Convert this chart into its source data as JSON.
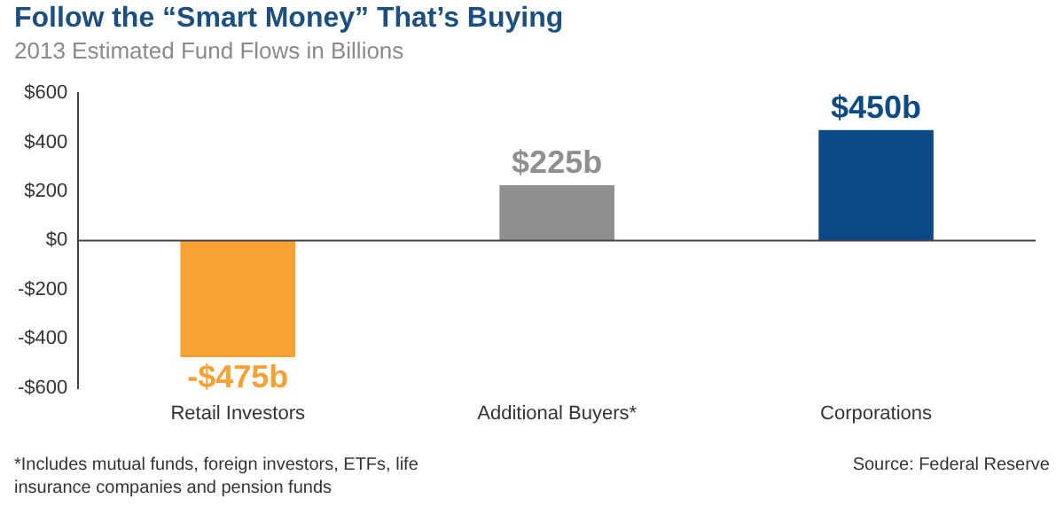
{
  "chart_data": {
    "type": "bar",
    "title": "Follow the “Smart Money” That’s Buying",
    "subtitle": "2013 Estimated Fund Flows in Billions",
    "categories": [
      "Retail Investors",
      "Additional Buyers*",
      "Corporations"
    ],
    "values": [
      -475,
      225,
      450
    ],
    "colors": [
      "#f7a034",
      "#8f8f91",
      "#0b4a86"
    ],
    "value_labels": [
      "-$475b",
      "$225b",
      "$450b"
    ],
    "ylim": [
      -600,
      600
    ],
    "yticks": [
      {
        "value": -600,
        "label": "-$600"
      },
      {
        "value": -400,
        "label": "-$400"
      },
      {
        "value": -200,
        "label": "-$200"
      },
      {
        "value": 0,
        "label": "$0"
      },
      {
        "value": 200,
        "label": "$200"
      },
      {
        "value": 400,
        "label": "$400"
      },
      {
        "value": 600,
        "label": "$600"
      }
    ],
    "annotations": [
      "*Includes mutual funds, foreign investors, ETFs, life insurance companies and pension funds",
      "Source: Federal Reserve"
    ]
  }
}
